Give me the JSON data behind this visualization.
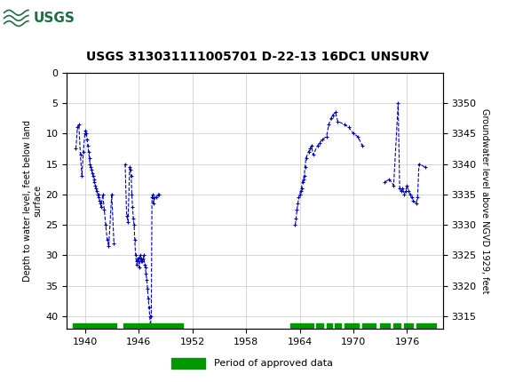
{
  "title": "USGS 313031111005701 D-22-13 16DC1 UNSURV",
  "ylabel_left": "Depth to water level, feet below land\nsurface",
  "ylabel_right": "Groundwater level above NGVD 1929, feet",
  "xlim": [
    1938,
    1980
  ],
  "ylim_left": [
    42,
    0
  ],
  "ylim_right": [
    3313,
    3355
  ],
  "xticks": [
    1940,
    1946,
    1952,
    1958,
    1964,
    1970,
    1976
  ],
  "yticks_left": [
    0,
    5,
    10,
    15,
    20,
    25,
    30,
    35,
    40
  ],
  "yticks_right": [
    3315,
    3320,
    3325,
    3330,
    3335,
    3340,
    3345,
    3350
  ],
  "header_color": "#1a7040",
  "line_color": "#0000cc",
  "approved_color": "#009900",
  "background_color": "#ffffff",
  "grid_color": "#c8c8c8",
  "segments": [
    {
      "x": [
        1939.0,
        1939.17,
        1939.33,
        1939.5,
        1939.67,
        1939.83,
        1940.0,
        1940.08,
        1940.17,
        1940.25,
        1940.33,
        1940.42,
        1940.5,
        1940.58,
        1940.67,
        1940.75,
        1940.83,
        1940.92,
        1941.0,
        1941.08,
        1941.17,
        1941.25,
        1941.33,
        1941.42,
        1941.5,
        1941.58,
        1941.67,
        1941.75,
        1941.83,
        1942.0,
        1942.17,
        1942.33,
        1942.5,
        1942.67,
        1943.0,
        1943.25
      ],
      "y": [
        12.5,
        9.0,
        8.5,
        13.5,
        17.0,
        13.0,
        10.0,
        9.5,
        10.0,
        11.0,
        12.0,
        13.0,
        14.0,
        15.0,
        15.5,
        16.0,
        16.5,
        17.0,
        17.5,
        18.0,
        18.5,
        19.0,
        19.5,
        20.0,
        20.0,
        20.5,
        21.0,
        21.5,
        22.0,
        20.0,
        22.5,
        25.0,
        27.5,
        28.5,
        20.0,
        28.0
      ]
    },
    {
      "x": [
        1944.5,
        1944.67,
        1944.83,
        1945.0,
        1945.08,
        1945.17,
        1945.25,
        1945.33,
        1945.42,
        1945.5,
        1945.58,
        1945.67,
        1945.75,
        1945.83,
        1945.92,
        1946.0,
        1946.08,
        1946.17,
        1946.25,
        1946.33,
        1946.42,
        1946.5,
        1946.58,
        1946.67,
        1946.75,
        1946.83,
        1946.92,
        1947.0,
        1947.08,
        1947.17,
        1947.25,
        1947.33,
        1947.42,
        1947.5,
        1947.58,
        1947.67,
        1947.75,
        1948.0,
        1948.17,
        1948.25
      ],
      "y": [
        15.0,
        23.5,
        24.5,
        15.5,
        16.0,
        17.0,
        20.0,
        22.0,
        24.0,
        25.0,
        27.5,
        30.0,
        31.0,
        31.5,
        30.5,
        30.5,
        32.0,
        30.0,
        31.0,
        30.5,
        31.0,
        30.5,
        30.0,
        31.5,
        32.0,
        33.0,
        34.0,
        35.5,
        37.0,
        38.5,
        40.0,
        41.5,
        40.0,
        20.5,
        20.0,
        21.5,
        20.5,
        20.5,
        20.0,
        20.0
      ]
    },
    {
      "x": [
        1963.5,
        1963.6,
        1963.7,
        1963.8,
        1963.9,
        1964.0,
        1964.1,
        1964.2,
        1964.3,
        1964.4,
        1964.5,
        1964.6,
        1964.7,
        1965.0,
        1965.17,
        1965.33,
        1965.5,
        1966.0,
        1966.25,
        1966.5,
        1967.0,
        1967.25,
        1967.5,
        1967.67,
        1968.0,
        1968.25,
        1969.0,
        1969.5,
        1970.0,
        1970.5,
        1971.0
      ],
      "y": [
        25.0,
        24.0,
        22.5,
        21.5,
        20.5,
        20.0,
        19.5,
        19.0,
        18.0,
        17.5,
        17.0,
        15.5,
        14.0,
        13.0,
        12.5,
        12.0,
        13.5,
        12.0,
        11.5,
        11.0,
        10.5,
        8.5,
        7.5,
        7.0,
        6.5,
        8.0,
        8.5,
        9.0,
        10.0,
        10.5,
        12.0
      ]
    },
    {
      "x": [
        1973.5,
        1974.0,
        1974.5,
        1975.0,
        1975.17,
        1975.33,
        1975.5,
        1975.67,
        1975.83,
        1976.0,
        1976.17,
        1976.33,
        1976.5,
        1976.67,
        1977.0,
        1977.17,
        1977.33,
        1978.0
      ],
      "y": [
        18.0,
        17.5,
        18.5,
        5.0,
        19.0,
        19.5,
        19.0,
        20.0,
        19.5,
        18.5,
        19.5,
        20.0,
        20.5,
        21.0,
        21.5,
        20.5,
        15.0,
        15.5
      ]
    }
  ],
  "approved_segments": [
    [
      1938.7,
      1943.5
    ],
    [
      1944.3,
      1951.0
    ],
    [
      1963.0,
      1965.5
    ],
    [
      1965.8,
      1966.6
    ],
    [
      1967.0,
      1967.6
    ],
    [
      1967.9,
      1968.6
    ],
    [
      1969.0,
      1970.6
    ],
    [
      1971.0,
      1972.5
    ],
    [
      1973.0,
      1974.1
    ],
    [
      1974.5,
      1975.3
    ],
    [
      1975.7,
      1976.6
    ],
    [
      1977.0,
      1979.2
    ]
  ]
}
